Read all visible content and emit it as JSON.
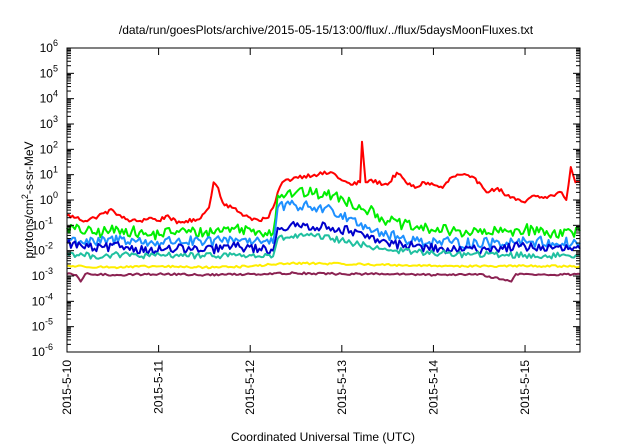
{
  "chart_data": {
    "type": "line",
    "title": "/data/run/goesPlots/archive/2015-05-15/13:00/flux/../flux/5daysMoonFluxes.txt",
    "xlabel": "Coordinated Universal Time (UTC)",
    "ylabel": {
      "prefix": "protons/cm",
      "sup": "2",
      "suffix": "-s-sr-MeV"
    },
    "y_scale": "log",
    "ylim_exp": [
      -6,
      6
    ],
    "y_ticks": [
      {
        "base": "10",
        "exp": "6"
      },
      {
        "base": "10",
        "exp": "5"
      },
      {
        "base": "10",
        "exp": "4"
      },
      {
        "base": "10",
        "exp": "3"
      },
      {
        "base": "10",
        "exp": "2"
      },
      {
        "base": "10",
        "exp": "1"
      },
      {
        "base": "10",
        "exp": "0"
      },
      {
        "base": "10",
        "exp": "-1"
      },
      {
        "base": "10",
        "exp": "-2"
      },
      {
        "base": "10",
        "exp": "-3"
      },
      {
        "base": "10",
        "exp": "-4"
      },
      {
        "base": "10",
        "exp": "-5"
      },
      {
        "base": "10",
        "exp": "-6"
      }
    ],
    "x_ticks": [
      "2015-5-10",
      "2015-5-11",
      "2015-5-12",
      "2015-5-13",
      "2015-5-14",
      "2015-5-15"
    ],
    "xlim_days": [
      0,
      5.6
    ],
    "grid": false,
    "series": [
      {
        "color": "#ff0000",
        "points": [
          [
            0.0,
            0.25
          ],
          [
            0.1,
            0.2
          ],
          [
            0.2,
            0.15
          ],
          [
            0.3,
            0.2
          ],
          [
            0.4,
            0.3
          ],
          [
            0.5,
            0.4
          ],
          [
            0.6,
            0.2
          ],
          [
            0.7,
            0.15
          ],
          [
            0.8,
            0.15
          ],
          [
            0.9,
            0.2
          ],
          [
            1.0,
            0.15
          ],
          [
            1.1,
            0.25
          ],
          [
            1.2,
            0.12
          ],
          [
            1.3,
            0.15
          ],
          [
            1.4,
            0.15
          ],
          [
            1.5,
            0.3
          ],
          [
            1.55,
            0.5
          ],
          [
            1.6,
            5
          ],
          [
            1.65,
            3
          ],
          [
            1.7,
            0.8
          ],
          [
            1.8,
            0.5
          ],
          [
            1.9,
            0.3
          ],
          [
            2.0,
            0.2
          ],
          [
            2.1,
            0.15
          ],
          [
            2.2,
            0.2
          ],
          [
            2.25,
            0.5
          ],
          [
            2.3,
            2
          ],
          [
            2.35,
            5
          ],
          [
            2.5,
            8
          ],
          [
            2.7,
            10
          ],
          [
            2.9,
            12
          ],
          [
            3.0,
            6
          ],
          [
            3.1,
            4
          ],
          [
            3.2,
            5
          ],
          [
            3.22,
            200
          ],
          [
            3.26,
            5
          ],
          [
            3.3,
            6
          ],
          [
            3.5,
            4
          ],
          [
            3.6,
            12
          ],
          [
            3.7,
            5
          ],
          [
            3.8,
            3
          ],
          [
            3.9,
            5
          ],
          [
            4.0,
            4
          ],
          [
            4.1,
            3
          ],
          [
            4.2,
            8
          ],
          [
            4.3,
            10
          ],
          [
            4.4,
            8
          ],
          [
            4.5,
            5
          ],
          [
            4.6,
            2
          ],
          [
            4.7,
            3
          ],
          [
            4.8,
            1.5
          ],
          [
            4.9,
            1
          ],
          [
            5.0,
            0.8
          ],
          [
            5.1,
            1.5
          ],
          [
            5.2,
            1.2
          ],
          [
            5.3,
            1.5
          ],
          [
            5.4,
            2
          ],
          [
            5.45,
            1
          ],
          [
            5.5,
            20
          ],
          [
            5.55,
            5
          ],
          [
            5.6,
            5
          ]
        ]
      },
      {
        "color": "#00ee00",
        "points": [
          [
            0.0,
            0.08
          ],
          [
            0.3,
            0.05
          ],
          [
            0.6,
            0.07
          ],
          [
            0.9,
            0.04
          ],
          [
            1.2,
            0.06
          ],
          [
            1.5,
            0.05
          ],
          [
            1.8,
            0.08
          ],
          [
            2.1,
            0.06
          ],
          [
            2.25,
            0.05
          ],
          [
            2.3,
            1.5
          ],
          [
            2.5,
            2
          ],
          [
            2.7,
            1.8
          ],
          [
            2.9,
            1.5
          ],
          [
            3.1,
            0.8
          ],
          [
            3.3,
            0.4
          ],
          [
            3.5,
            0.15
          ],
          [
            3.8,
            0.08
          ],
          [
            4.2,
            0.06
          ],
          [
            4.6,
            0.05
          ],
          [
            5.0,
            0.07
          ],
          [
            5.3,
            0.05
          ],
          [
            5.6,
            0.06
          ]
        ]
      },
      {
        "color": "#1e90ff",
        "points": [
          [
            0.0,
            0.03
          ],
          [
            0.3,
            0.02
          ],
          [
            0.6,
            0.03
          ],
          [
            0.9,
            0.02
          ],
          [
            1.2,
            0.025
          ],
          [
            1.5,
            0.02
          ],
          [
            1.8,
            0.03
          ],
          [
            2.1,
            0.025
          ],
          [
            2.25,
            0.02
          ],
          [
            2.3,
            0.5
          ],
          [
            2.5,
            0.6
          ],
          [
            2.7,
            0.5
          ],
          [
            2.9,
            0.4
          ],
          [
            3.1,
            0.2
          ],
          [
            3.3,
            0.08
          ],
          [
            3.5,
            0.04
          ],
          [
            3.8,
            0.025
          ],
          [
            4.2,
            0.02
          ],
          [
            4.6,
            0.02
          ],
          [
            5.0,
            0.025
          ],
          [
            5.3,
            0.02
          ],
          [
            5.6,
            0.02
          ]
        ]
      },
      {
        "color": "#0000cc",
        "points": [
          [
            0.0,
            0.02
          ],
          [
            0.3,
            0.012
          ],
          [
            0.6,
            0.015
          ],
          [
            0.9,
            0.01
          ],
          [
            1.2,
            0.012
          ],
          [
            1.5,
            0.01
          ],
          [
            1.8,
            0.015
          ],
          [
            2.1,
            0.012
          ],
          [
            2.25,
            0.01
          ],
          [
            2.3,
            0.08
          ],
          [
            2.6,
            0.1
          ],
          [
            2.9,
            0.08
          ],
          [
            3.1,
            0.06
          ],
          [
            3.3,
            0.03
          ],
          [
            3.5,
            0.02
          ],
          [
            3.8,
            0.015
          ],
          [
            4.2,
            0.01
          ],
          [
            4.6,
            0.012
          ],
          [
            5.0,
            0.015
          ],
          [
            5.3,
            0.012
          ],
          [
            5.6,
            0.012
          ]
        ]
      },
      {
        "color": "#20c0a0",
        "points": [
          [
            0.0,
            0.008
          ],
          [
            0.3,
            0.006
          ],
          [
            0.6,
            0.007
          ],
          [
            0.9,
            0.006
          ],
          [
            1.2,
            0.007
          ],
          [
            1.5,
            0.006
          ],
          [
            1.8,
            0.007
          ],
          [
            2.1,
            0.006
          ],
          [
            2.25,
            0.006
          ],
          [
            2.3,
            0.03
          ],
          [
            2.6,
            0.04
          ],
          [
            2.9,
            0.03
          ],
          [
            3.1,
            0.02
          ],
          [
            3.3,
            0.015
          ],
          [
            3.6,
            0.01
          ],
          [
            4.0,
            0.008
          ],
          [
            4.4,
            0.007
          ],
          [
            4.8,
            0.007
          ],
          [
            5.2,
            0.006
          ],
          [
            5.6,
            0.007
          ]
        ]
      },
      {
        "color": "#ffee00",
        "points": [
          [
            0.0,
            0.0025
          ],
          [
            0.5,
            0.0022
          ],
          [
            1.0,
            0.0024
          ],
          [
            1.5,
            0.0022
          ],
          [
            2.0,
            0.0024
          ],
          [
            2.3,
            0.003
          ],
          [
            2.6,
            0.0032
          ],
          [
            3.0,
            0.003
          ],
          [
            3.4,
            0.0028
          ],
          [
            3.8,
            0.0026
          ],
          [
            4.2,
            0.0025
          ],
          [
            4.6,
            0.0024
          ],
          [
            5.0,
            0.0025
          ],
          [
            5.6,
            0.0024
          ]
        ]
      },
      {
        "color": "#8b2252",
        "points": [
          [
            0.0,
            0.0012
          ],
          [
            0.1,
            0.0011
          ],
          [
            0.15,
            0.0006
          ],
          [
            0.2,
            0.0012
          ],
          [
            0.5,
            0.0011
          ],
          [
            1.0,
            0.0012
          ],
          [
            1.5,
            0.0011
          ],
          [
            2.0,
            0.0012
          ],
          [
            2.5,
            0.0013
          ],
          [
            3.0,
            0.0012
          ],
          [
            3.5,
            0.0012
          ],
          [
            4.0,
            0.0011
          ],
          [
            4.5,
            0.0012
          ],
          [
            4.85,
            0.0006
          ],
          [
            4.9,
            0.0012
          ],
          [
            5.3,
            0.0011
          ],
          [
            5.6,
            0.0012
          ]
        ]
      }
    ]
  }
}
